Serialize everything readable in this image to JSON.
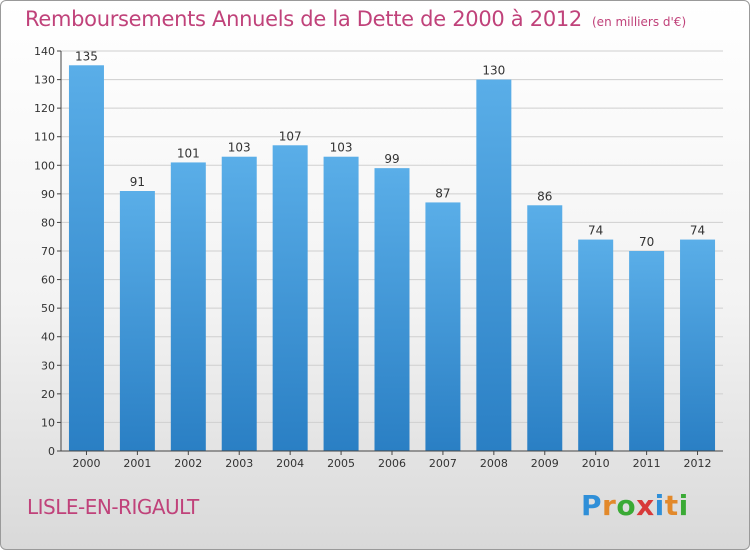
{
  "header": {
    "title": "Remboursements Annuels de la Dette de 2000 à 2012",
    "unit": "(en milliers d'€)"
  },
  "footer": {
    "city": "LISLE-EN-RIGAULT",
    "brand": "Proxiti",
    "brand_letters": [
      "P",
      "r",
      "o",
      "x",
      "i",
      "t",
      "i"
    ],
    "brand_colors": [
      "#2f8fd8",
      "#e2892b",
      "#3aaa35",
      "#d83a3a",
      "#2f8fd8",
      "#e2892b",
      "#3aaa35"
    ]
  },
  "chart_data": {
    "type": "bar",
    "categories": [
      "2000",
      "2001",
      "2002",
      "2003",
      "2004",
      "2005",
      "2006",
      "2007",
      "2008",
      "2009",
      "2010",
      "2011",
      "2012"
    ],
    "values": [
      135,
      91,
      101,
      103,
      107,
      103,
      99,
      87,
      130,
      86,
      74,
      70,
      74
    ],
    "title": "Remboursements Annuels de la Dette de 2000 à 2012",
    "subtitle": "(en milliers d'€)",
    "xlabel": "",
    "ylabel": "",
    "ylim": [
      0,
      140
    ],
    "yticks": [
      0,
      10,
      20,
      30,
      40,
      50,
      60,
      70,
      80,
      90,
      100,
      110,
      120,
      130,
      140
    ],
    "grid": "horizontal",
    "bar_color_top": "#5aaee8",
    "bar_color_bottom": "#2a7fc4",
    "axis_color": "#444444"
  }
}
